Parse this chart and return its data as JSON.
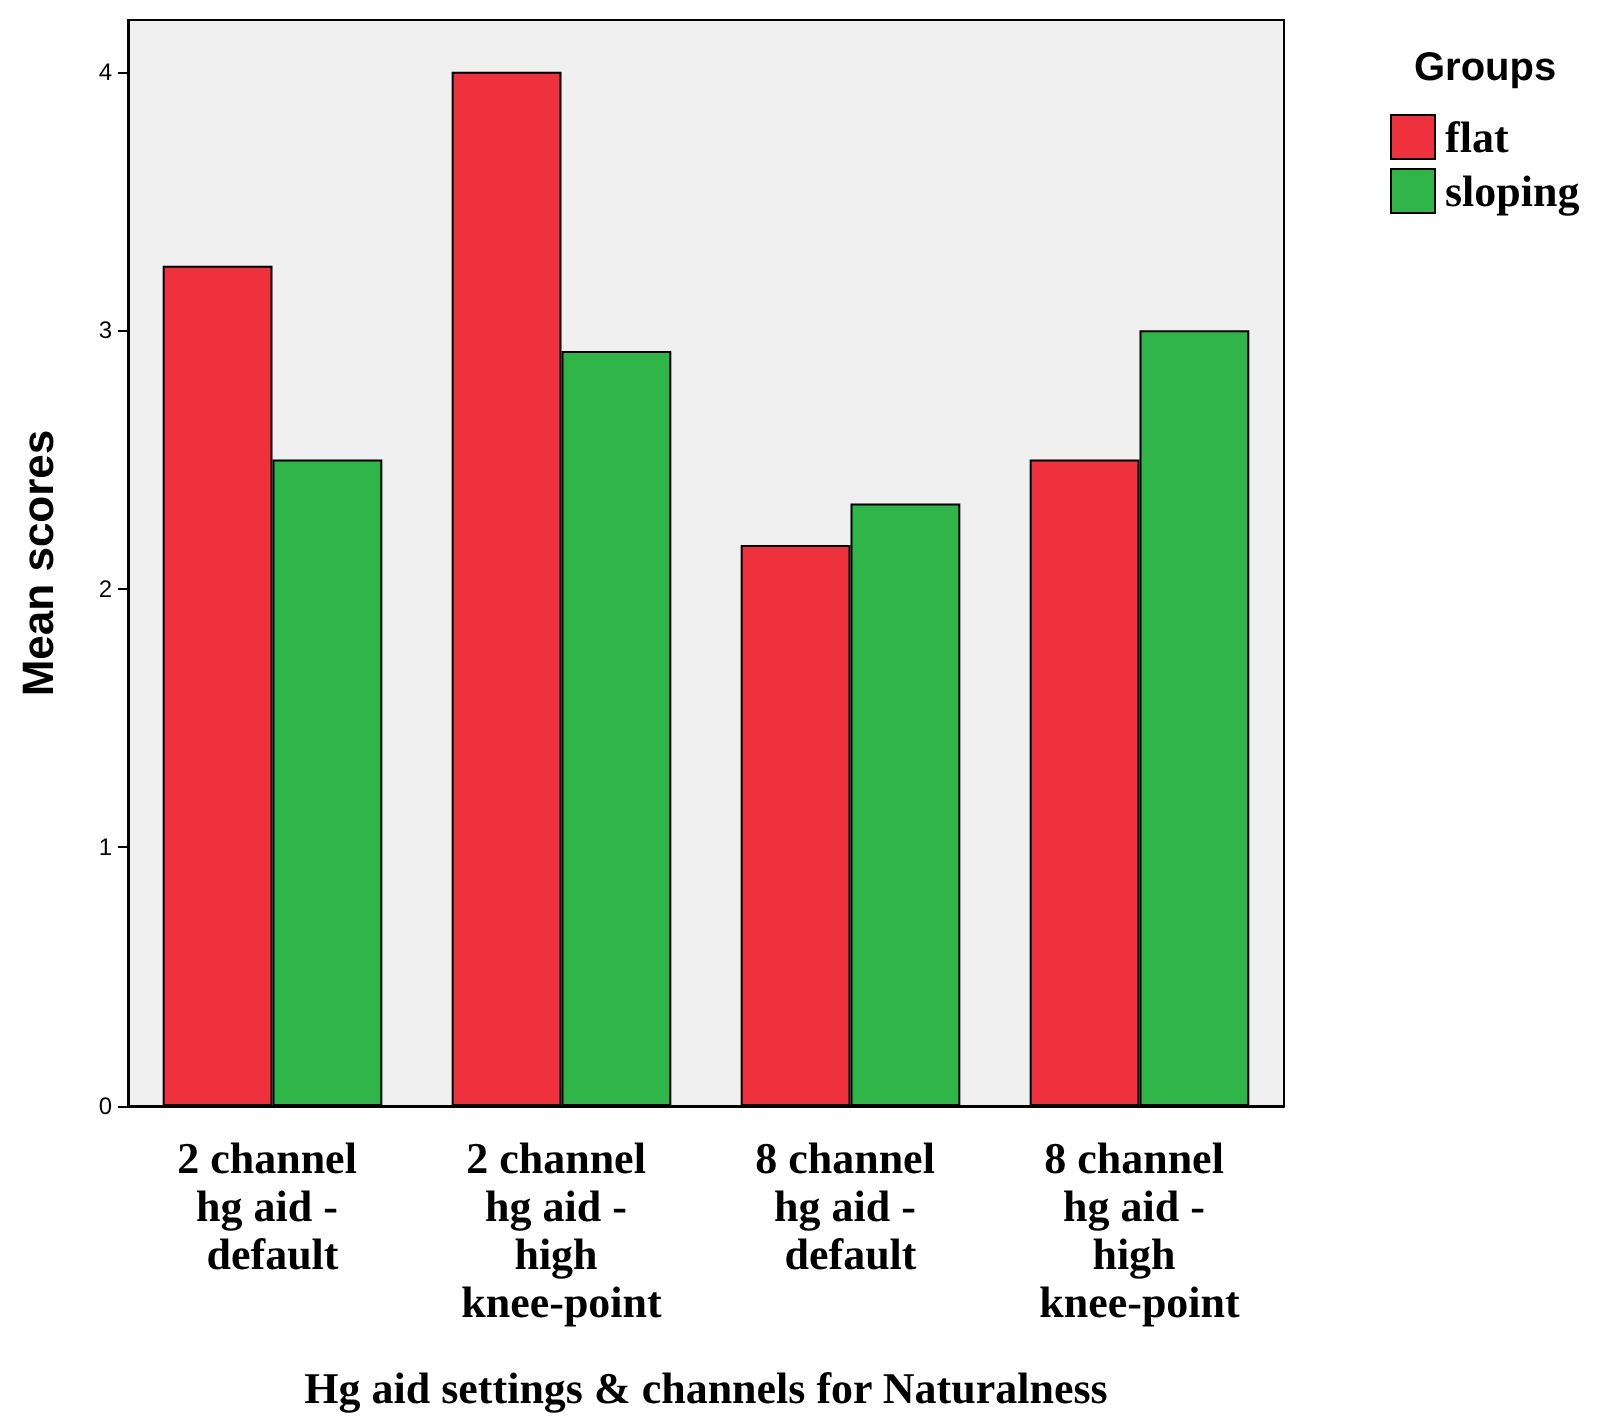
{
  "chart_data": {
    "type": "bar",
    "xlabel": "Hg aid settings & channels for Naturalness",
    "ylabel": "Mean scores",
    "legend_title": "Groups",
    "categories": [
      "2 channel hg aid - default",
      "2 channel hg aid - high knee-point",
      "8 channel hg aid - default",
      "8 channel hg aid - high knee-point"
    ],
    "series": [
      {
        "name": "flat",
        "color": "#ef313d",
        "values": [
          3.25,
          4.0,
          2.17,
          2.5
        ]
      },
      {
        "name": "sloping",
        "color": "#2fb548",
        "values": [
          2.5,
          2.92,
          2.33,
          3.0
        ]
      }
    ],
    "ylim": [
      0,
      4.2
    ],
    "yticks": [
      0,
      1,
      2,
      3,
      4
    ],
    "grid": false,
    "legend": "top right"
  }
}
